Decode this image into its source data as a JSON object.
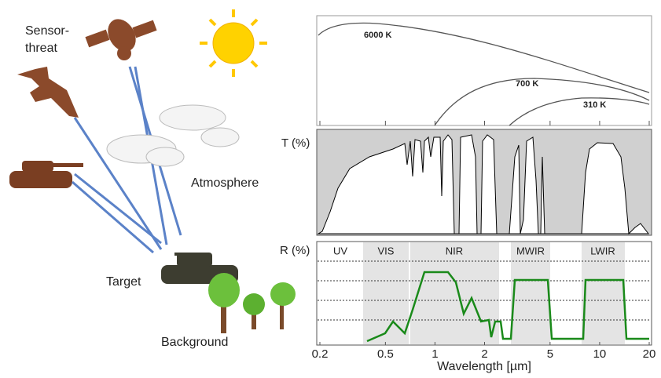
{
  "scene": {
    "sensor_label": [
      "Sensor-",
      "threat"
    ],
    "atmosphere": "Atmosphere",
    "target": "Target",
    "background": "Background"
  },
  "emission": {
    "curves": [
      {
        "label": "6000 K"
      },
      {
        "label": "700 K"
      },
      {
        "label": "310 K"
      }
    ]
  },
  "transmittance": {
    "ylabel": "T (%)"
  },
  "reflectance": {
    "ylabel": "R (%)",
    "bands": [
      "UV",
      "VIS",
      "NIR",
      "MWIR",
      "LWIR"
    ]
  },
  "axis": {
    "xlabel": "Wavelength [µm]",
    "xticks": [
      0.2,
      0.5,
      1,
      2,
      5,
      10,
      20
    ]
  }
}
